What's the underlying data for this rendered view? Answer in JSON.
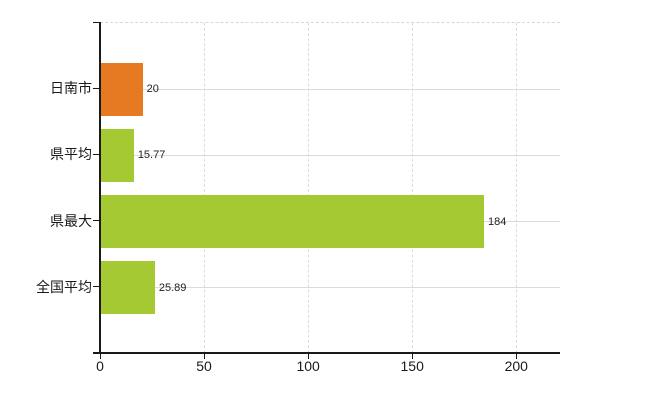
{
  "chart_data": {
    "type": "bar",
    "orientation": "horizontal",
    "title": "",
    "xlabel": "",
    "ylabel": "",
    "categories": [
      "日南市",
      "県平均",
      "県最大",
      "全国平均"
    ],
    "values": [
      20,
      15.77,
      184,
      25.89
    ],
    "value_labels": [
      "20",
      "15.77",
      "184",
      "25.89"
    ],
    "bar_colors": [
      "#e67a22",
      "#a4c932",
      "#a4c932",
      "#a4c932"
    ],
    "x_ticks": [
      0,
      50,
      100,
      150,
      200
    ],
    "x_tick_labels": [
      "0",
      "50",
      "100",
      "150",
      "200"
    ],
    "xlim": [
      0,
      221
    ],
    "grid": true,
    "legend": false
  },
  "colors": {
    "background": "#ffffff",
    "axis": "#1a1a1a",
    "grid_horizontal": "#d9ded3",
    "grid_vertical": "#dcdcdc",
    "plot_border_top": "#d8d8d8",
    "category_text": "#1a1a1a",
    "value_text": "#222222"
  }
}
